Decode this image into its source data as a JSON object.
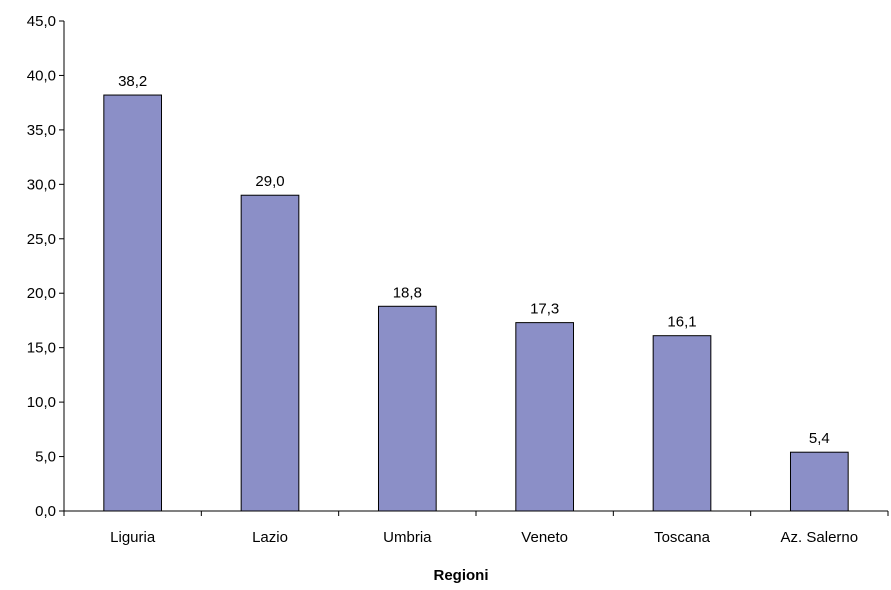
{
  "chart_data": {
    "type": "bar",
    "title": "",
    "xlabel": "Regioni",
    "ylabel": "",
    "categories": [
      "Liguria",
      "Lazio",
      "Umbria",
      "Veneto",
      "Toscana",
      "Az. Salerno"
    ],
    "values": [
      38.2,
      29.0,
      18.8,
      17.3,
      16.1,
      5.4
    ],
    "value_labels": [
      "38,2",
      "29,0",
      "18,8",
      "17,3",
      "16,1",
      "5,4"
    ],
    "ylim": [
      0,
      45
    ],
    "yticks": [
      0,
      5,
      10,
      15,
      20,
      25,
      30,
      35,
      40,
      45
    ],
    "ytick_labels": [
      "0,0",
      "5,0",
      "10,0",
      "15,0",
      "20,0",
      "25,0",
      "30,0",
      "35,0",
      "40,0",
      "45,0"
    ],
    "grid": false,
    "legend": "none",
    "bar_color": "#8b8fc7",
    "bar_edge_color": "#000000"
  }
}
